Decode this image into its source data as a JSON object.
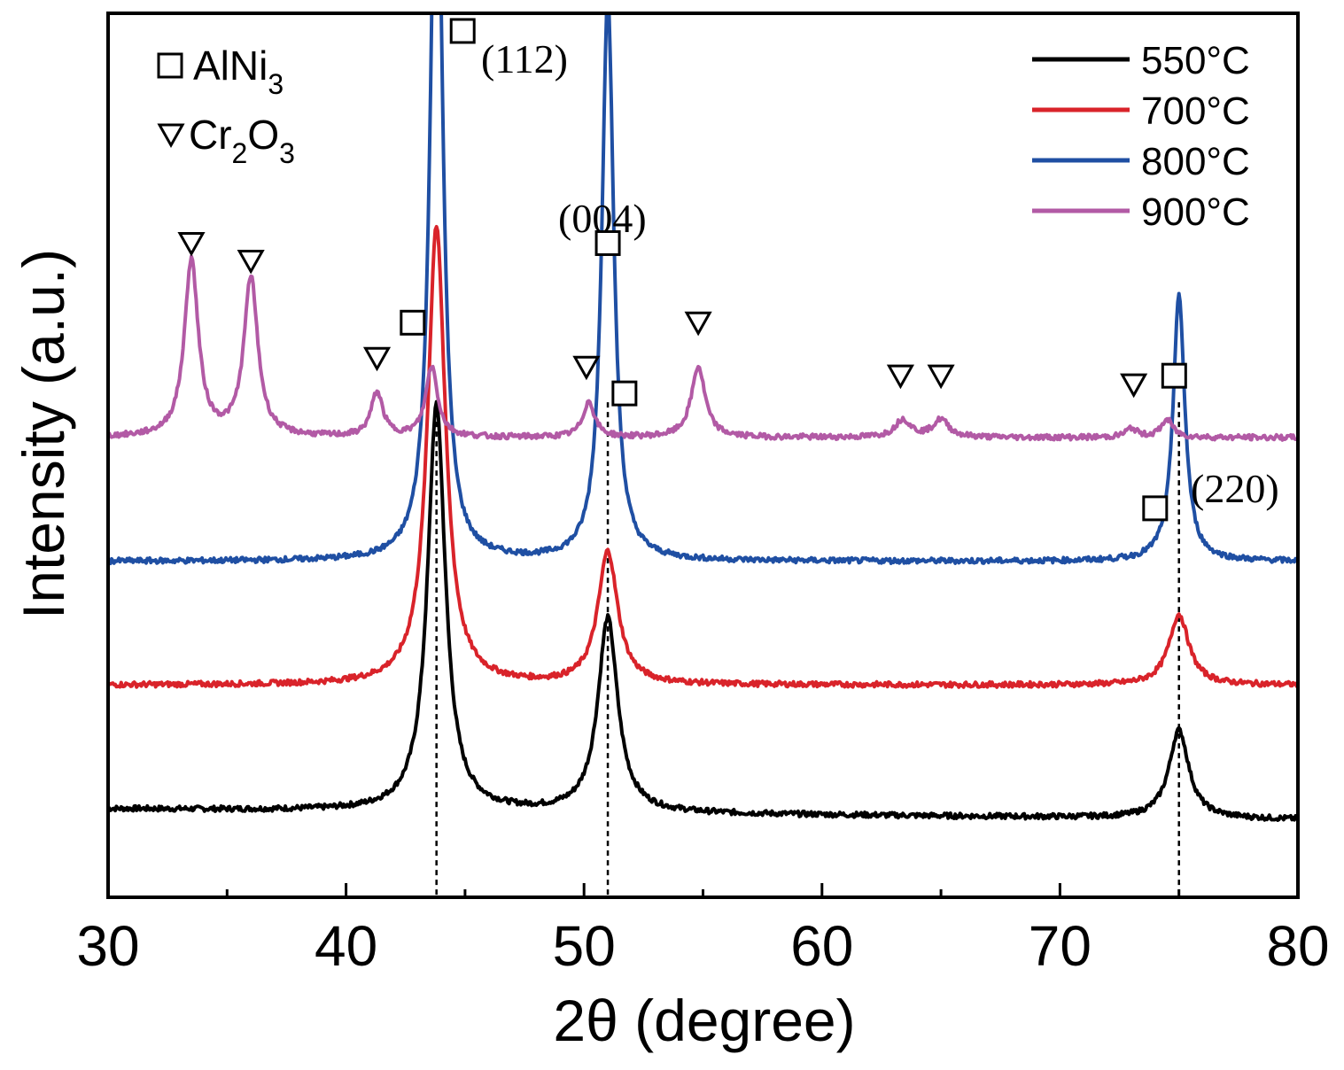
{
  "chart_data": {
    "type": "line",
    "title": "",
    "xlabel": "2θ (degree)",
    "ylabel": "Intensity (a.u.)",
    "xlim": [
      30,
      80
    ],
    "xticks": [
      "30",
      "40",
      "50",
      "60",
      "70",
      "80"
    ],
    "grid": false,
    "legend_position": "top-right",
    "series": [
      {
        "name": "550°C",
        "color": "#000000",
        "baseline": 0.1,
        "peaks": [
          [
            43.8,
            0.46,
            0.45
          ],
          [
            51.0,
            0.22,
            0.5
          ],
          [
            75.0,
            0.1,
            0.5
          ]
        ]
      },
      {
        "name": "700°C",
        "color": "#d9232a",
        "baseline": 0.24,
        "peaks": [
          [
            43.8,
            0.52,
            0.45
          ],
          [
            51.0,
            0.15,
            0.5
          ],
          [
            75.0,
            0.08,
            0.5
          ]
        ]
      },
      {
        "name": "800°C",
        "color": "#1f4fa3",
        "baseline": 0.38,
        "peaks": [
          [
            43.8,
            0.9,
            0.3
          ],
          [
            51.0,
            0.64,
            0.3
          ],
          [
            75.0,
            0.3,
            0.3
          ]
        ]
      },
      {
        "name": "900°C",
        "color": "#b25aa5",
        "baseline": 0.52,
        "peaks": [
          [
            33.5,
            0.2,
            0.35
          ],
          [
            36.0,
            0.18,
            0.35
          ],
          [
            41.3,
            0.05,
            0.3
          ],
          [
            43.6,
            0.08,
            0.3
          ],
          [
            50.2,
            0.04,
            0.3
          ],
          [
            54.8,
            0.08,
            0.35
          ],
          [
            63.4,
            0.02,
            0.4
          ],
          [
            65.0,
            0.02,
            0.4
          ],
          [
            73.0,
            0.01,
            0.3
          ],
          [
            74.5,
            0.02,
            0.3
          ]
        ]
      }
    ],
    "phase_legend": [
      {
        "symbol": "square",
        "name": "AlNi",
        "sub": "3",
        "after": ""
      },
      {
        "symbol": "triangle",
        "name": "Cr",
        "sub": "2",
        "after": "O",
        "sub2": "3"
      }
    ],
    "reflection_labels": [
      {
        "text": "(112)",
        "x": 43.8
      },
      {
        "text": "(004)",
        "x": 51.0
      },
      {
        "text": "(220)",
        "x": 75.0
      }
    ],
    "phase_markers": [
      {
        "symbol": "triangle",
        "x": 33.5,
        "level": 0.74
      },
      {
        "symbol": "triangle",
        "x": 36.0,
        "level": 0.72
      },
      {
        "symbol": "triangle",
        "x": 41.3,
        "level": 0.61
      },
      {
        "symbol": "square",
        "x": 42.8,
        "level": 0.65
      },
      {
        "symbol": "triangle",
        "x": 50.1,
        "level": 0.6
      },
      {
        "symbol": "square",
        "x": 51.7,
        "level": 0.57
      },
      {
        "symbol": "triangle",
        "x": 54.8,
        "level": 0.65
      },
      {
        "symbol": "triangle",
        "x": 63.3,
        "level": 0.59
      },
      {
        "symbol": "triangle",
        "x": 65.0,
        "level": 0.59
      },
      {
        "symbol": "triangle",
        "x": 73.1,
        "level": 0.58
      },
      {
        "symbol": "square",
        "x": 74.8,
        "level": 0.59
      },
      {
        "symbol": "square",
        "x": 74.0,
        "level": 0.44
      },
      {
        "symbol": "square",
        "x": 44.9,
        "level": 0.98
      },
      {
        "symbol": "square",
        "x": 51.0,
        "level": 0.74
      }
    ],
    "reference_lines": [
      43.8,
      51.0,
      75.0
    ]
  }
}
